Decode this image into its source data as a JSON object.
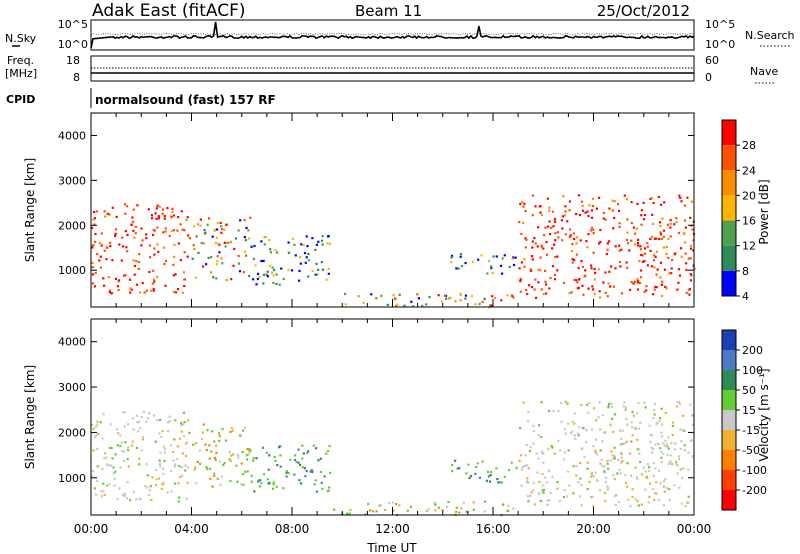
{
  "header": {
    "station": "Adak East (fitACF)",
    "beam": "Beam 11",
    "date": "25/Oct/2012"
  },
  "chart_data": [
    {
      "type": "line",
      "panel": "noise",
      "left_label": "N.Sky",
      "right_label": "N.Search",
      "left_ticks": [
        "10^5",
        "10^0"
      ],
      "right_ticks": [
        "10^5",
        "10^0"
      ],
      "xlim": [
        "00:00",
        "24:00"
      ]
    },
    {
      "type": "line",
      "panel": "frequency",
      "left_label": "Freq.",
      "left_units": "[MHz]",
      "right_label": "Nave",
      "left_ticks": [
        "18",
        "8"
      ],
      "right_ticks": [
        "60",
        "0"
      ],
      "xlim": [
        "00:00",
        "24:00"
      ]
    },
    {
      "type": "table",
      "panel": "cpid",
      "label": "CPID",
      "text": "normalsound (fast) 157 RF"
    },
    {
      "type": "heatmap",
      "panel": "power",
      "ylabel": "Slant Range [km]",
      "ylim": [
        180,
        4500
      ],
      "yticks": [
        "4000",
        "3000",
        "2000",
        "1000"
      ],
      "xlim": [
        "00:00",
        "24:00"
      ],
      "colorbar": {
        "label": "Power [dB]",
        "ticks": [
          "28",
          "24",
          "20",
          "16",
          "12",
          "8",
          "4"
        ],
        "colors": [
          "#ff0000",
          "#ff5000",
          "#ff8c00",
          "#ffb400",
          "#4ea04e",
          "#2e8b57",
          "#0000ff"
        ]
      },
      "echo_regions": [
        {
          "t": [
            0.0,
            3.9
          ],
          "range": [
            500,
            2500
          ],
          "level": "high"
        },
        {
          "t": [
            4.0,
            6.3
          ],
          "range": [
            800,
            2200
          ],
          "level": "mixed"
        },
        {
          "t": [
            6.3,
            9.5
          ],
          "range": [
            700,
            1800
          ],
          "level": "low"
        },
        {
          "t": [
            9.5,
            16.8
          ],
          "range": [
            200,
            500
          ],
          "level": "mixed"
        },
        {
          "t": [
            14.3,
            16.9
          ],
          "range": [
            900,
            1400
          ],
          "level": "low"
        },
        {
          "t": [
            17.0,
            24.0
          ],
          "range": [
            400,
            2700
          ],
          "level": "high"
        }
      ]
    },
    {
      "type": "heatmap",
      "panel": "velocity",
      "ylabel": "Slant Range [km]",
      "ylim": [
        180,
        4500
      ],
      "yticks": [
        "4000",
        "3000",
        "2000",
        "1000"
      ],
      "xlabel": "Time UT",
      "xticks": [
        "00:00",
        "04:00",
        "08:00",
        "12:00",
        "16:00",
        "20:00",
        "00:00"
      ],
      "colorbar": {
        "label": "Velocity [m s⁻¹]",
        "ticks": [
          "200",
          "100",
          "50",
          "15",
          "-15",
          "-50",
          "-100",
          "-200"
        ],
        "colors": [
          "#1f3fb4",
          "#4d7ac8",
          "#2e8b57",
          "#66cc33",
          "#c8c8c8",
          "#f0b030",
          "#ff8000",
          "#ff4000",
          "#ff0000"
        ]
      }
    }
  ]
}
